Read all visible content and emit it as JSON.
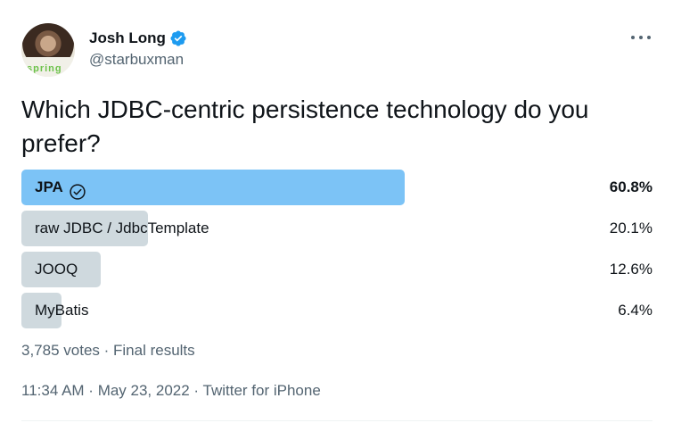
{
  "author": {
    "display_name": "Josh Long",
    "handle": "@starbuxman",
    "avatar_shirt_text": "spring",
    "verified_icon": "verified-badge-icon",
    "more_icon": "more-options-icon"
  },
  "tweet": {
    "text": "Which JDBC-centric persistence technology do you prefer?"
  },
  "poll": {
    "options": [
      {
        "label": "JPA",
        "percent_text": "60.8%",
        "percent": 60.8,
        "winner": true
      },
      {
        "label": "raw JDBC / JdbcTemplate",
        "percent_text": "20.1%",
        "percent": 20.1,
        "winner": false
      },
      {
        "label": "JOOQ",
        "percent_text": "12.6%",
        "percent": 12.6,
        "winner": false
      },
      {
        "label": "MyBatis",
        "percent_text": "6.4%",
        "percent": 6.4,
        "winner": false
      }
    ],
    "votes": "3,785 votes",
    "separator": " · ",
    "status": "Final results"
  },
  "meta": {
    "time": "11:34 AM",
    "date": "May 23, 2022",
    "source": "Twitter for iPhone",
    "separator": " · "
  },
  "colors": {
    "winner_bar": "#7cc3f6",
    "other_bar": "#cfd9de",
    "verified": "#1d9bf0",
    "secondary_text": "#536471"
  }
}
